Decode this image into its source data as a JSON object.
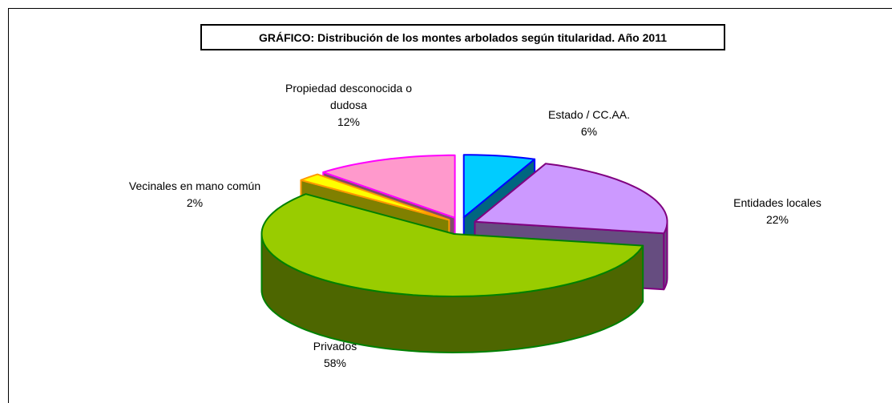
{
  "chart_data": {
    "type": "pie3d",
    "title": "GRÁFICO: Distribución de los montes arbolados según titularidad. Año 2011",
    "categories": [
      "Estado / CC.AA.",
      "Entidades locales",
      "Privados",
      "Vecinales en mano común",
      "Propiedad desconocida o dudosa"
    ],
    "values": [
      6,
      22,
      58,
      2,
      12
    ],
    "value_labels": [
      "6%",
      "22%",
      "58%",
      "2%",
      "12%"
    ],
    "colors": [
      "#00ccff",
      "#cc99ff",
      "#99cc00",
      "#ffff00",
      "#ff99cc"
    ],
    "borders": [
      "#0000ff",
      "#800080",
      "#008000",
      "#ff9900",
      "#ff00ff"
    ]
  }
}
